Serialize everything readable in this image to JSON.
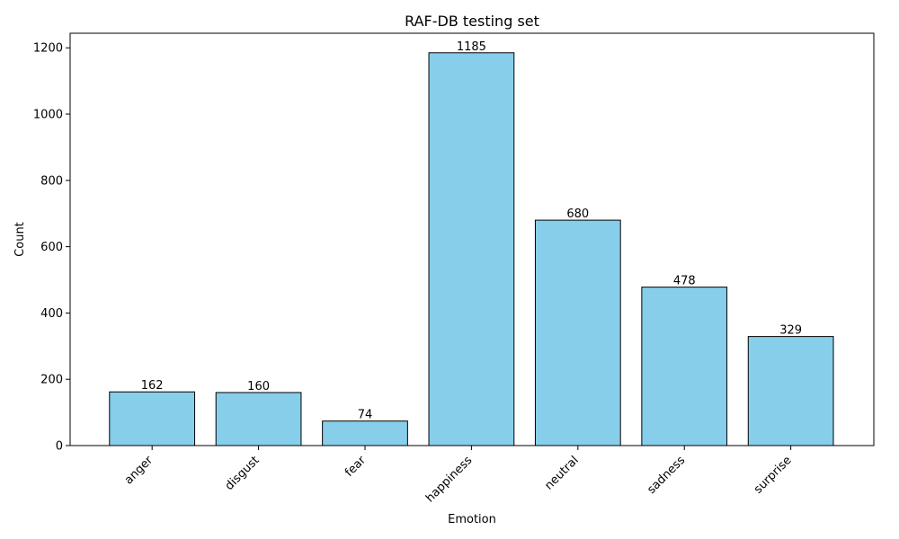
{
  "chart_data": {
    "type": "bar",
    "title": "RAF-DB testing set",
    "xlabel": "Emotion",
    "ylabel": "Count",
    "categories": [
      "anger",
      "disgust",
      "fear",
      "happiness",
      "neutral",
      "sadness",
      "surprise"
    ],
    "values": [
      162,
      160,
      74,
      1185,
      680,
      478,
      329
    ],
    "ylim": [
      0,
      1244
    ],
    "yticks": [
      0,
      200,
      400,
      600,
      800,
      1000,
      1200
    ],
    "grid": false,
    "legend": "none",
    "colors": {
      "bar_fill": "#87CEEB",
      "bar_edge": "#000000"
    }
  }
}
